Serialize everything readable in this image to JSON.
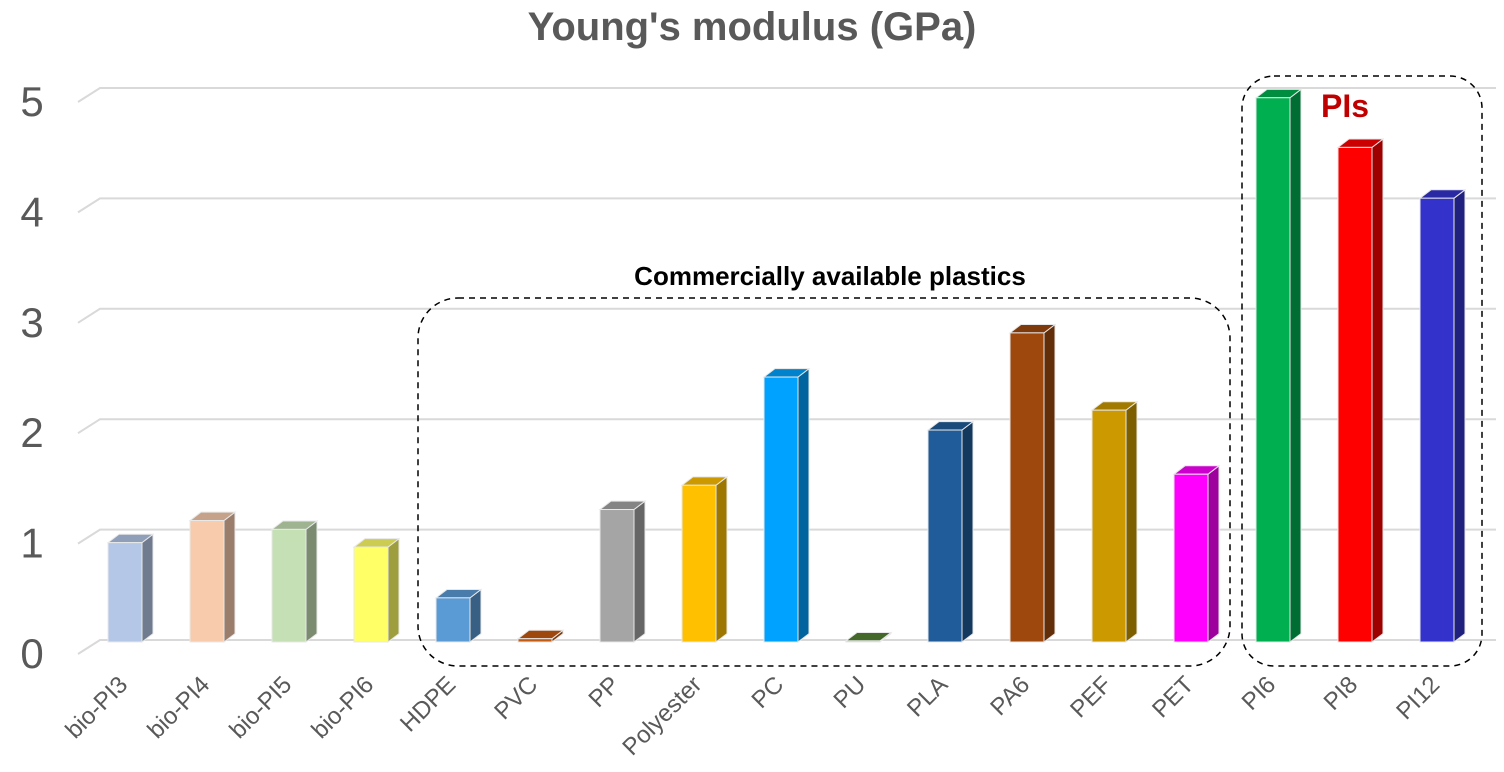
{
  "chart_data": {
    "type": "bar",
    "title": "Young's modulus (GPa)",
    "xlabel": "",
    "ylabel": "",
    "ylim": [
      0,
      5
    ],
    "yticks": [
      "0",
      "1",
      "2",
      "3",
      "4",
      "5"
    ],
    "grid": true,
    "categories": [
      "bio-PI3",
      "bio-PI4",
      "bio-PI5",
      "bio-PI6",
      "HDPE",
      "PVC",
      "PP",
      "Polyester",
      "PC",
      "PU",
      "PLA",
      "PA6",
      "PEF",
      "PET",
      "PI6",
      "PI8",
      "PI12"
    ],
    "values": [
      0.9,
      1.1,
      1.02,
      0.86,
      0.4,
      0.03,
      1.2,
      1.42,
      2.4,
      0.01,
      1.92,
      2.8,
      2.1,
      1.52,
      4.93,
      4.48,
      4.02
    ],
    "colors": [
      "#b4c7e7",
      "#f8cbad",
      "#c5e0b4",
      "#ffff66",
      "#5b9bd5",
      "#c55a11",
      "#a5a5a5",
      "#ffc000",
      "#00a2ff",
      "#548235",
      "#1f5c99",
      "#9e480e",
      "#cc9900",
      "#ff00ff",
      "#00b050",
      "#ff0000",
      "#3333cc"
    ],
    "annotations": [
      {
        "text": "Commercially available plastics",
        "color": "#000000"
      },
      {
        "text": "PIs",
        "color": "#c00000"
      }
    ]
  }
}
